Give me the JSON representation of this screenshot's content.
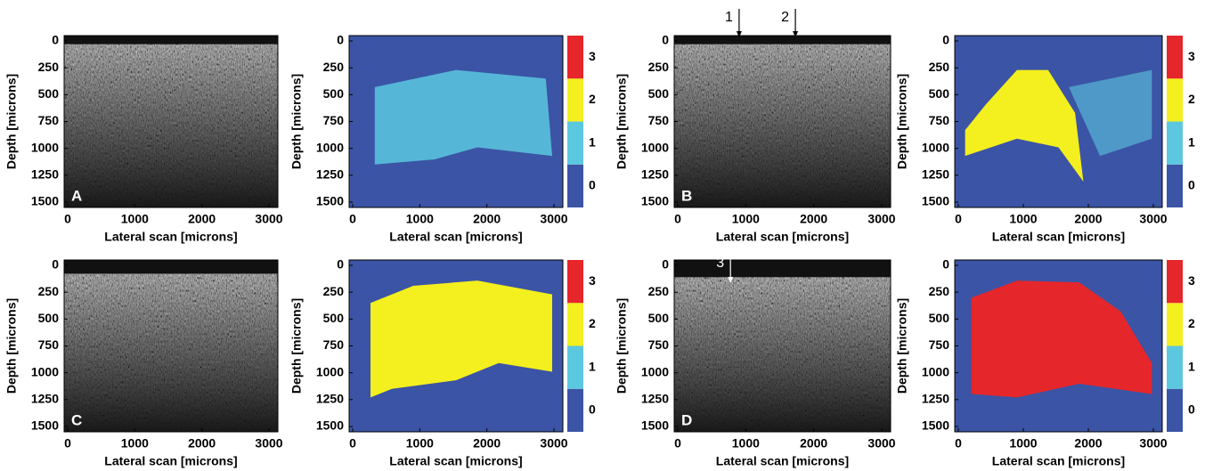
{
  "panels": [
    {
      "letter": "A",
      "kind": "image",
      "ylabel": "Depth [microns]",
      "xlabel": "Lateral scan [microns]",
      "yticks": [
        0,
        250,
        500,
        750,
        1000,
        1250,
        1500
      ],
      "xticks": [
        0,
        1000,
        2000,
        3000
      ]
    },
    {
      "kind": "map",
      "ylabel": "Depth [microns]",
      "xlabel": "Lateral scan [microns]",
      "yticks": [
        0,
        250,
        500,
        750,
        1000,
        1250,
        1500
      ],
      "xticks": [
        0,
        1000,
        2000,
        3000
      ],
      "colorbar": [
        0,
        1,
        2,
        3
      ]
    },
    {
      "letter": "B",
      "kind": "image",
      "ylabel": "Depth [microns]",
      "xlabel": "Lateral scan [microns]",
      "yticks": [
        0,
        250,
        500,
        750,
        1000,
        1250,
        1500
      ],
      "xticks": [
        0,
        1000,
        2000,
        3000
      ],
      "arrows": [
        "1",
        "2"
      ]
    },
    {
      "kind": "map",
      "ylabel": "Depth [microns]",
      "xlabel": "Lateral scan [microns]",
      "yticks": [
        0,
        250,
        500,
        750,
        1000,
        1250,
        1500
      ],
      "xticks": [
        0,
        1000,
        2000,
        3000
      ],
      "colorbar": [
        0,
        1,
        2,
        3
      ]
    },
    {
      "letter": "C",
      "kind": "image",
      "ylabel": "Depth [microns]",
      "xlabel": "Lateral scan [microns]",
      "yticks": [
        0,
        250,
        500,
        750,
        1000,
        1250,
        1500
      ],
      "xticks": [
        0,
        1000,
        2000,
        3000
      ]
    },
    {
      "kind": "map",
      "ylabel": "Depth [microns]",
      "xlabel": "Lateral scan [microns]",
      "yticks": [
        0,
        250,
        500,
        750,
        1000,
        1250,
        1500
      ],
      "xticks": [
        0,
        1000,
        2000,
        3000
      ],
      "colorbar": [
        0,
        1,
        2,
        3
      ]
    },
    {
      "letter": "D",
      "kind": "image",
      "ylabel": "Depth [microns]",
      "xlabel": "Lateral scan [microns]",
      "yticks": [
        0,
        250,
        500,
        750,
        1000,
        1250,
        1500
      ],
      "xticks": [
        0,
        1000,
        2000,
        3000
      ],
      "arrows": [
        "3"
      ]
    },
    {
      "kind": "map",
      "ylabel": "Depth [microns]",
      "xlabel": "Lateral scan [microns]",
      "yticks": [
        0,
        250,
        500,
        750,
        1000,
        1250,
        1500
      ],
      "xticks": [
        0,
        1000,
        2000,
        3000
      ],
      "colorbar": [
        0,
        1,
        2,
        3
      ]
    }
  ]
}
